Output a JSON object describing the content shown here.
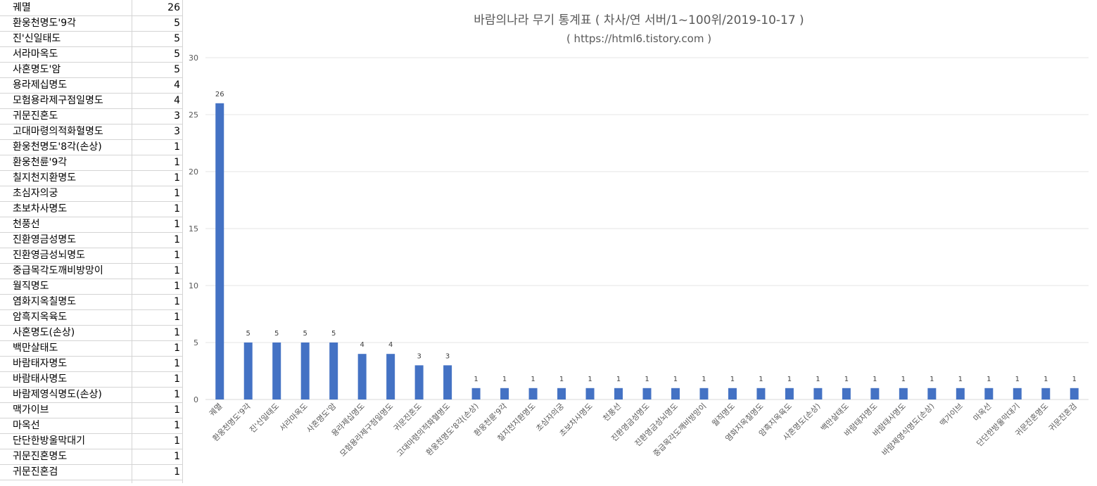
{
  "table": {
    "rows": [
      {
        "name": "궤멸",
        "count": "26"
      },
      {
        "name": "환웅천명도'9각",
        "count": "5"
      },
      {
        "name": "진'신일태도",
        "count": "5"
      },
      {
        "name": "서라마옥도",
        "count": "5"
      },
      {
        "name": "사혼명도'암",
        "count": "5"
      },
      {
        "name": "용라제십명도",
        "count": "4"
      },
      {
        "name": "모험용라제구점일명도",
        "count": "4"
      },
      {
        "name": "귀문진혼도",
        "count": "3"
      },
      {
        "name": "고대마령의적화혈명도",
        "count": "3"
      },
      {
        "name": "환웅천명도'8각(손상)",
        "count": "1"
      },
      {
        "name": "환웅천륜'9각",
        "count": "1"
      },
      {
        "name": "칠지천지환명도",
        "count": "1"
      },
      {
        "name": "초심자의궁",
        "count": "1"
      },
      {
        "name": "초보차사명도",
        "count": "1"
      },
      {
        "name": "천풍선",
        "count": "1"
      },
      {
        "name": "진환영금성명도",
        "count": "1"
      },
      {
        "name": "진환영금성뇌명도",
        "count": "1"
      },
      {
        "name": "중급목각도깨비방망이",
        "count": "1"
      },
      {
        "name": "월직명도",
        "count": "1"
      },
      {
        "name": "염화지옥칠명도",
        "count": "1"
      },
      {
        "name": "암흑지옥육도",
        "count": "1"
      },
      {
        "name": "사혼명도(손상)",
        "count": "1"
      },
      {
        "name": "백만살태도",
        "count": "1"
      },
      {
        "name": "바람태자명도",
        "count": "1"
      },
      {
        "name": "바람태사명도",
        "count": "1"
      },
      {
        "name": "바람제영식명도(손상)",
        "count": "1"
      },
      {
        "name": "맥가이브",
        "count": "1"
      },
      {
        "name": "마옥선",
        "count": "1"
      },
      {
        "name": "단단한방울막대기",
        "count": "1"
      },
      {
        "name": "귀문진혼명도",
        "count": "1"
      },
      {
        "name": "귀문진혼검",
        "count": "1"
      }
    ]
  },
  "chart_data": {
    "type": "bar",
    "title": "바람의나라 무기 통계표 ( 차사/연 서버/1~100위/2019-10-17 )",
    "subtitle": "( https://html6.tistory.com )",
    "xlabel": "",
    "ylabel": "",
    "ylim": [
      0,
      30
    ],
    "yticks": [
      "0",
      "5",
      "10",
      "15",
      "20",
      "25",
      "30"
    ],
    "grid": true,
    "bar_color": "#4472c4",
    "categories": [
      "궤멸",
      "환웅천명도'9각",
      "진'신일태도",
      "서라마옥도",
      "사혼명도'암",
      "용라제십명도",
      "모험용라제구점일명도",
      "귀문진혼도",
      "고대마령의적화혈명도",
      "환웅천명도'8각(손상)",
      "환웅천륜'9각",
      "칠지천지환명도",
      "초심자의궁",
      "초보차사명도",
      "천풍선",
      "진환영금성명도",
      "진환영금성뇌명도",
      "중급목각도깨비방망이",
      "월직명도",
      "염화지옥칠명도",
      "암흑지옥육도",
      "사혼명도(손상)",
      "백만살태도",
      "바람태자명도",
      "바람태사명도",
      "바람제영식명도(손상)",
      "맥가이브",
      "마옥선",
      "단단한방울막대기",
      "귀문진혼명도",
      "귀문진혼검"
    ],
    "values": [
      26,
      5,
      5,
      5,
      5,
      4,
      4,
      3,
      3,
      1,
      1,
      1,
      1,
      1,
      1,
      1,
      1,
      1,
      1,
      1,
      1,
      1,
      1,
      1,
      1,
      1,
      1,
      1,
      1,
      1,
      1
    ],
    "data_labels": [
      "26",
      "5",
      "5",
      "5",
      "5",
      "4",
      "4",
      "3",
      "3",
      "1",
      "1",
      "1",
      "1",
      "1",
      "1",
      "1",
      "1",
      "1",
      "1",
      "1",
      "1",
      "1",
      "1",
      "1",
      "1",
      "1",
      "1",
      "1",
      "1",
      "1",
      "1"
    ]
  }
}
